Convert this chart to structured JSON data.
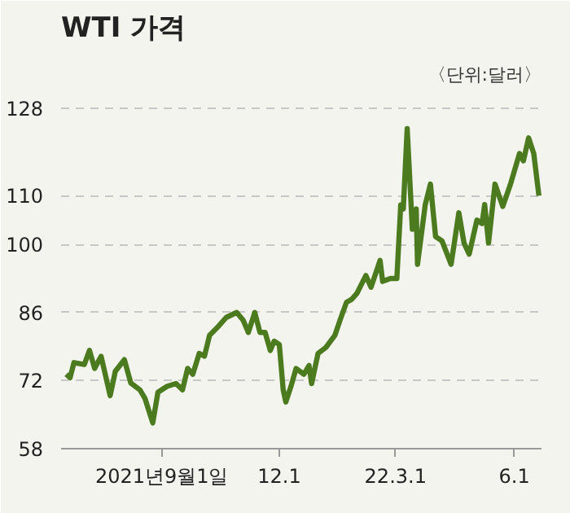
{
  "chart_data": {
    "type": "line",
    "title": "WTI 가격",
    "annotations": [
      "〈단위:달러〉"
    ],
    "x": [
      "2021-06-19",
      "2021-06-22",
      "2021-06-25",
      "2021-07-03",
      "2021-07-07",
      "2021-07-11",
      "2021-07-16",
      "2021-07-23",
      "2021-07-27",
      "2021-08-03",
      "2021-08-08",
      "2021-08-15",
      "2021-08-19",
      "2021-08-25",
      "2021-08-29",
      "2021-09-05",
      "2021-09-12",
      "2021-09-17",
      "2021-09-21",
      "2021-09-25",
      "2021-09-30",
      "2021-10-04",
      "2021-10-08",
      "2021-10-15",
      "2021-10-21",
      "2021-10-29",
      "2021-11-03",
      "2021-11-07",
      "2021-11-12",
      "2021-11-16",
      "2021-11-20",
      "2021-11-24",
      "2021-11-27",
      "2021-12-01",
      "2021-12-04",
      "2021-12-06",
      "2021-12-10",
      "2021-12-14",
      "2021-12-20",
      "2021-12-24",
      "2021-12-26",
      "2021-12-31",
      "2022-01-06",
      "2022-01-13",
      "2022-01-17",
      "2022-01-22",
      "2022-01-26",
      "2022-01-30",
      "2022-02-06",
      "2022-02-10",
      "2022-02-17",
      "2022-02-19",
      "2022-02-25",
      "2022-03-02",
      "2022-03-05",
      "2022-03-07",
      "2022-03-10",
      "2022-03-14",
      "2022-03-17",
      "2022-03-18",
      "2022-03-24",
      "2022-03-28",
      "2022-04-01",
      "2022-04-06",
      "2022-04-13",
      "2022-04-19",
      "2022-04-23",
      "2022-04-27",
      "2022-05-03",
      "2022-05-07",
      "2022-05-09",
      "2022-05-12",
      "2022-05-17",
      "2022-05-23",
      "2022-05-29",
      "2022-06-05",
      "2022-06-08",
      "2022-06-12",
      "2022-06-16",
      "2022-06-20"
    ],
    "series": [
      {
        "color": "#4b7a1f",
        "values": [
          73.3,
          72.6,
          75.7,
          75.3,
          78.2,
          74.5,
          77,
          68.9,
          73.9,
          76.3,
          71.5,
          70.1,
          68.3,
          63.3,
          69.6,
          70.8,
          71.4,
          70.1,
          74.5,
          73.3,
          77.6,
          77,
          81.3,
          83.2,
          85,
          86,
          84.4,
          81.9,
          86,
          81.9,
          81.9,
          78.2,
          80.1,
          79.4,
          70.1,
          67.6,
          70.8,
          74.5,
          73.3,
          75.1,
          71.4,
          77.6,
          78.8,
          81.3,
          84.4,
          88.1,
          88.7,
          89.9,
          93.6,
          91.2,
          96.7,
          92.4,
          93,
          93,
          108.1,
          107.3,
          123.8,
          103.1,
          107.3,
          95.9,
          108.2,
          112.4,
          101.6,
          100.7,
          95.9,
          106.5,
          100.3,
          98,
          105,
          104.3,
          108.2,
          100.3,
          112.4,
          107.8,
          112.4,
          118.7,
          117.2,
          121.9,
          118.7,
          110
        ]
      }
    ],
    "xlim": [
      "2021-06-15",
      "2022-06-22"
    ],
    "xticks": [
      {
        "value": "2021-09-01",
        "label": "2021년9월1일"
      },
      {
        "value": "2021-12-01",
        "label": "12.1"
      },
      {
        "value": "2022-03-01",
        "label": "22.3.1"
      },
      {
        "value": "2022-06-01",
        "label": "6.1"
      }
    ],
    "ylim": [
      58,
      131
    ],
    "yticks": [
      58,
      72,
      86,
      100,
      110,
      128
    ],
    "grid": "y",
    "marker": "none",
    "line_style": "solid"
  }
}
